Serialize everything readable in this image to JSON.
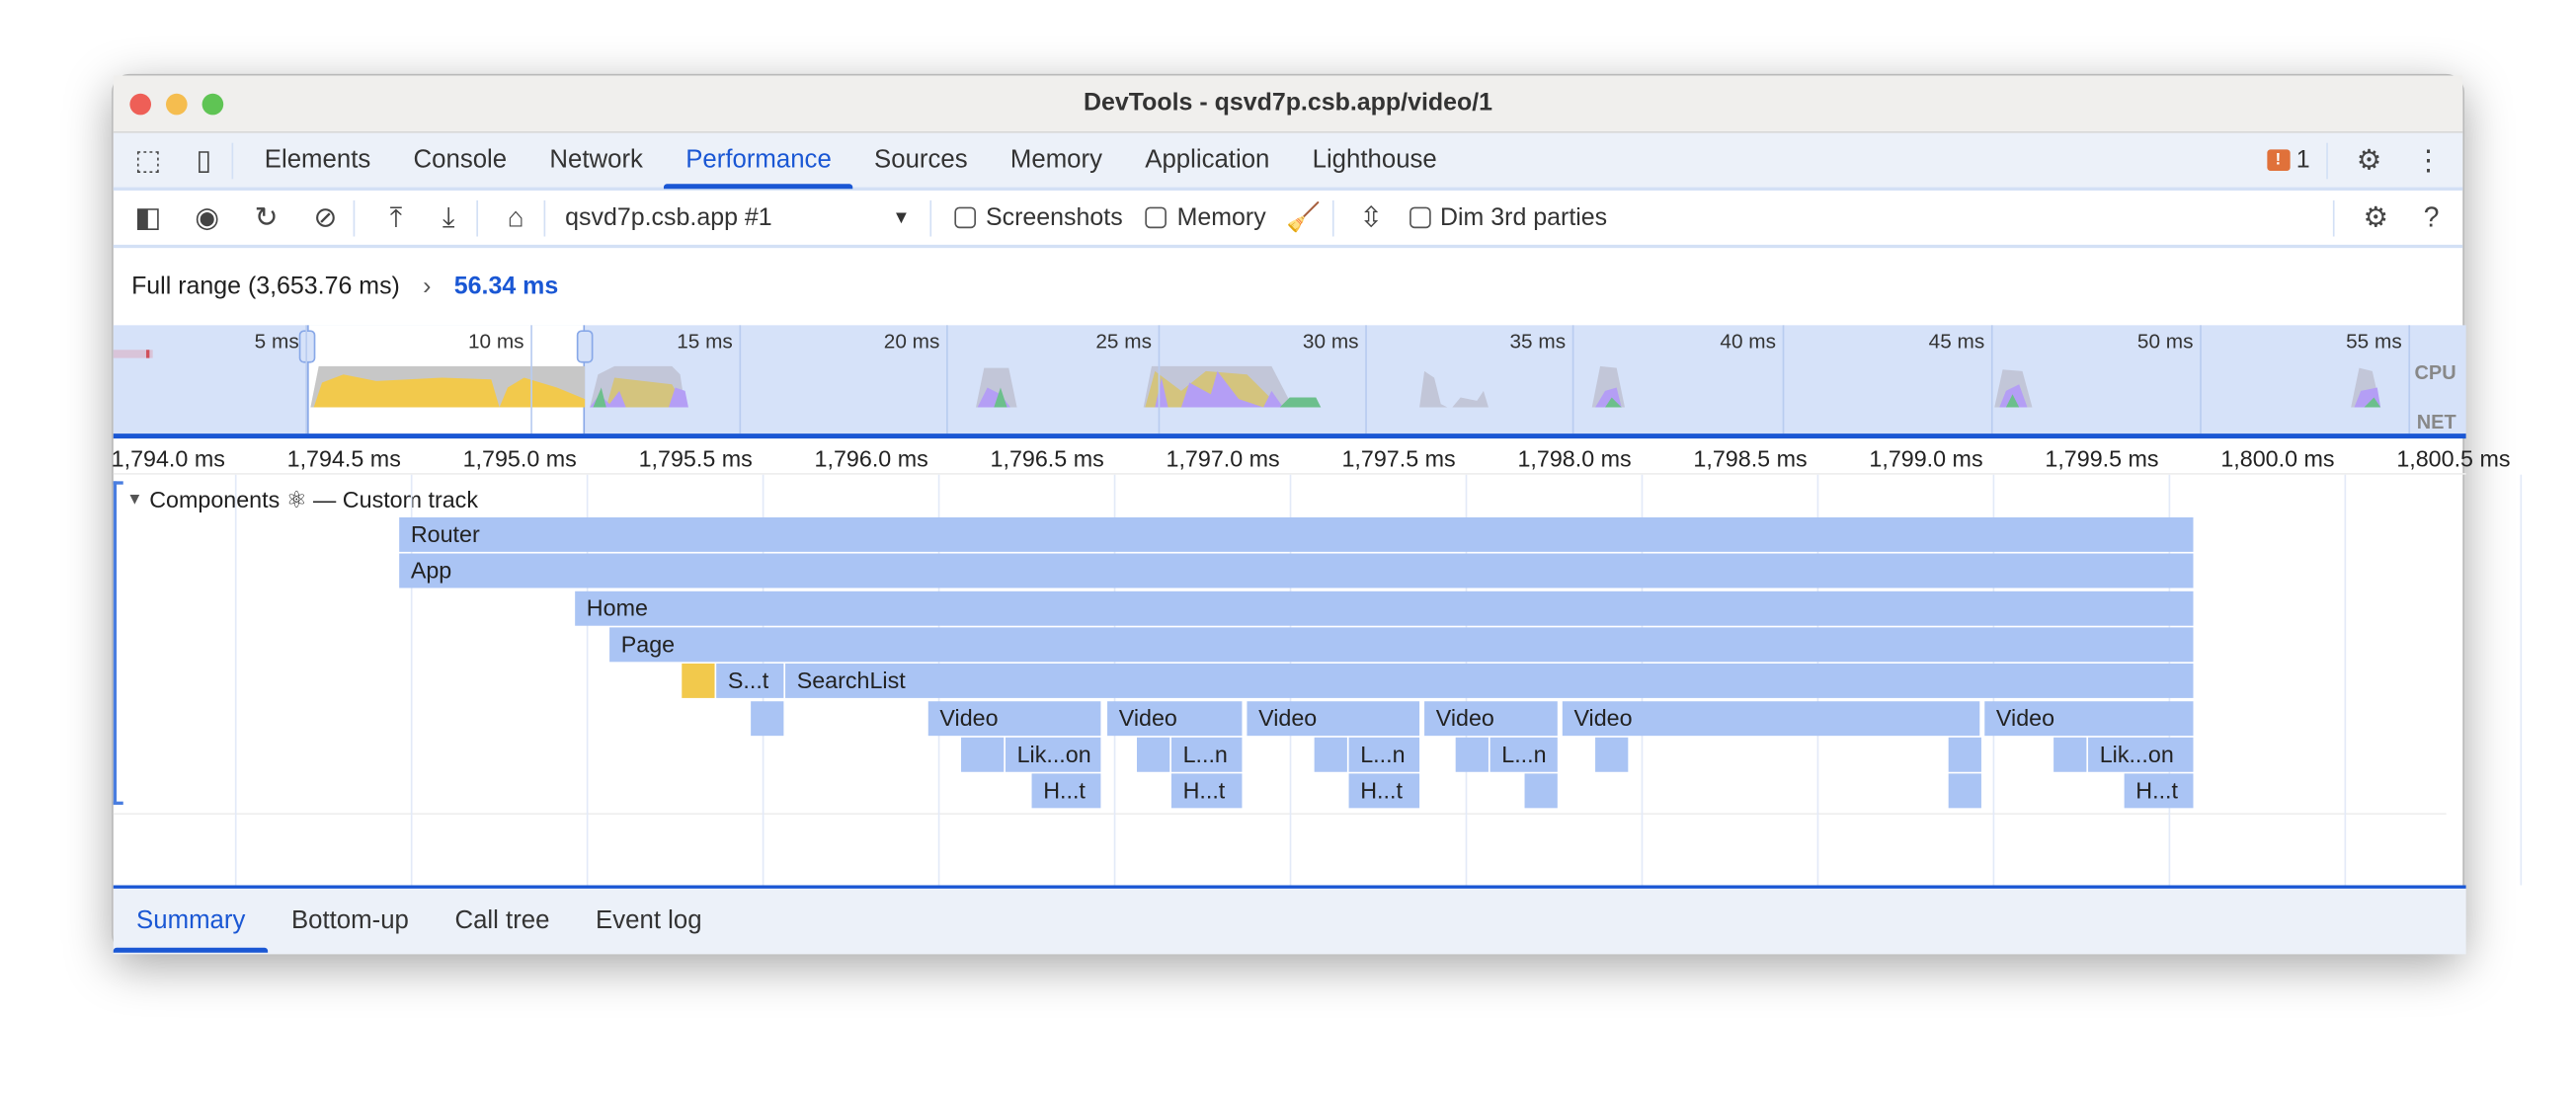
{
  "window": {
    "title": "DevTools - qsvd7p.csb.app/video/1"
  },
  "tabs": [
    "Elements",
    "Console",
    "Network",
    "Performance",
    "Sources",
    "Memory",
    "Application",
    "Lighthouse"
  ],
  "active_tab": "Performance",
  "issues": {
    "count": "1",
    "color": "#e0713a"
  },
  "toolbar": {
    "target": "qsvd7p.csb.app #1",
    "screenshots": "Screenshots",
    "memory": "Memory",
    "dim": "Dim 3rd parties",
    "screenshots_checked": false,
    "memory_checked": false,
    "dim_checked": false
  },
  "breadcrumb": {
    "full": "Full range (3,653.76 ms)",
    "current": "56.34 ms"
  },
  "overview": {
    "ticks": [
      "5 ms",
      "10 ms",
      "15 ms",
      "20 ms",
      "25 ms",
      "30 ms",
      "35 ms",
      "40 ms",
      "45 ms",
      "50 ms",
      "55 ms"
    ],
    "cpu": "CPU",
    "net": "NET"
  },
  "ruler": [
    "1,794.0 ms",
    "1,794.5 ms",
    "1,795.0 ms",
    "1,795.5 ms",
    "1,796.0 ms",
    "1,796.5 ms",
    "1,797.0 ms",
    "1,797.5 ms",
    "1,798.0 ms",
    "1,798.5 ms",
    "1,799.0 ms",
    "1,799.5 ms",
    "1,800.0 ms",
    "1,800.5 ms"
  ],
  "track": {
    "title": "Components ⚛ — Custom track"
  },
  "bars": {
    "router": "Router",
    "app": "App",
    "home": "Home",
    "page": "Page",
    "st": "S...t",
    "searchlist": "SearchList",
    "video": "Video",
    "likon": "Lik...on",
    "ln": "L...n",
    "ht": "H...t"
  },
  "bottom_tabs": [
    "Summary",
    "Bottom-up",
    "Call tree",
    "Event log"
  ],
  "colors": {
    "accent": "#1a57d4",
    "bar": "#aac4f4",
    "scripting": "#f2c94c",
    "rendering": "#b49ef5",
    "painting": "#6cbf8c"
  }
}
